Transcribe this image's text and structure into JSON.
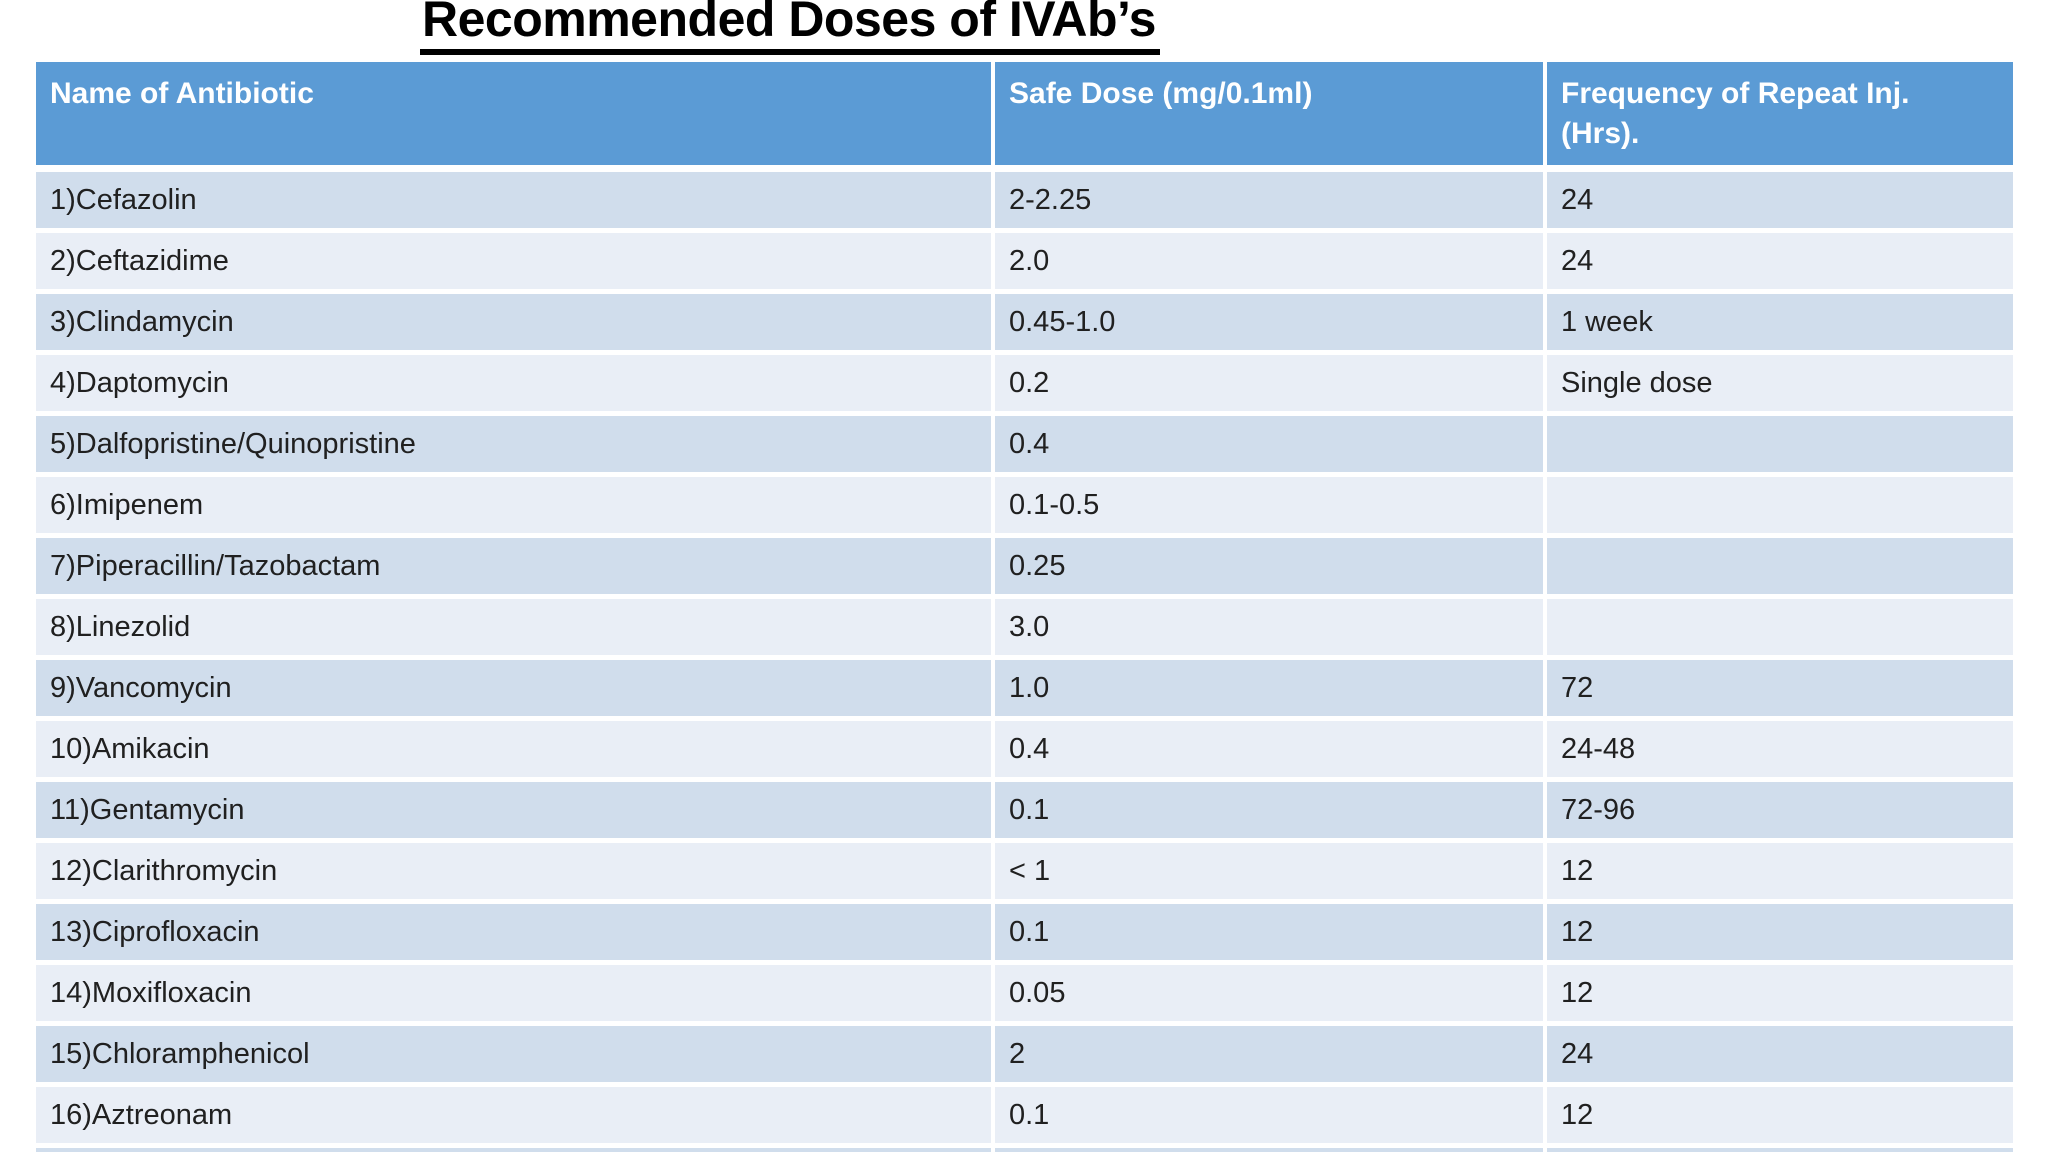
{
  "title": "Recommended Doses of IVAb’s",
  "table": {
    "columns": [
      {
        "label": "Name of Antibiotic"
      },
      {
        "label": "Safe Dose (mg/0.1ml)"
      },
      {
        "label": "Frequency of Repeat Inj. (Hrs).",
        "line1": "Frequency of Repeat Inj.",
        "line2": "(Hrs)."
      }
    ],
    "rows": [
      {
        "name": "1)Cefazolin",
        "dose": "2-2.25",
        "freq": "24"
      },
      {
        "name": "2)Ceftazidime",
        "dose": "2.0",
        "freq": "24"
      },
      {
        "name": "3)Clindamycin",
        "dose": "0.45-1.0",
        "freq": "1 week"
      },
      {
        "name": "4)Daptomycin",
        "dose": "0.2",
        "freq": "Single dose"
      },
      {
        "name": "5)Dalfopristine/Quinopristine",
        "dose": "0.4",
        "freq": ""
      },
      {
        "name": "6)Imipenem",
        "dose": "0.1-0.5",
        "freq": ""
      },
      {
        "name": "7)Piperacillin/Tazobactam",
        "dose": "0.25",
        "freq": ""
      },
      {
        "name": "8)Linezolid",
        "dose": "3.0",
        "freq": ""
      },
      {
        "name": "9)Vancomycin",
        "dose": "1.0",
        "freq": "72"
      },
      {
        "name": "10)Amikacin",
        "dose": "0.4",
        "freq": "24-48"
      },
      {
        "name": "11)Gentamycin",
        "dose": "0.1",
        "freq": "72-96"
      },
      {
        "name": "12)Clarithromycin",
        "dose": "< 1",
        "freq": "12"
      },
      {
        "name": "13)Ciprofloxacin",
        "dose": "0.1",
        "freq": "12"
      },
      {
        "name": "14)Moxifloxacin",
        "dose": "0.05",
        "freq": "12"
      },
      {
        "name": "15)Chloramphenicol",
        "dose": "2",
        "freq": "24"
      },
      {
        "name": "16)Aztreonam",
        "dose": "0.1",
        "freq": "12"
      }
    ]
  },
  "colors": {
    "header_bg": "#5B9BD5",
    "row_odd_bg": "#D0DDEC",
    "row_even_bg": "#E9EEF6",
    "header_text": "#FFFFFF",
    "body_text": "#202020",
    "title_text": "#000000"
  }
}
